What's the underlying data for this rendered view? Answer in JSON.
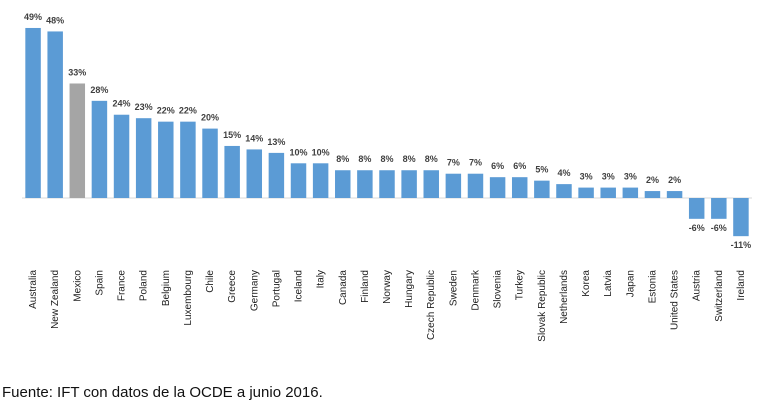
{
  "chart_data": {
    "type": "bar",
    "unit_suffix": "%",
    "categories": [
      "Australia",
      "New Zealand",
      "Mexico",
      "Spain",
      "France",
      "Poland",
      "Belgium",
      "Luxembourg",
      "Chile",
      "Greece",
      "Germany",
      "Portugal",
      "Iceland",
      "Italy",
      "Canada",
      "Finland",
      "Norway",
      "Hungary",
      "Czech Republic",
      "Sweden",
      "Denmark",
      "Slovenia",
      "Turkey",
      "Slovak Republic",
      "Netherlands",
      "Korea",
      "Latvia",
      "Japan",
      "Estonia",
      "United States",
      "Austria",
      "Switzerland",
      "Ireland"
    ],
    "values": [
      49,
      48,
      33,
      28,
      24,
      23,
      22,
      22,
      20,
      15,
      14,
      13,
      10,
      10,
      8,
      8,
      8,
      8,
      8,
      7,
      7,
      6,
      6,
      5,
      4,
      3,
      3,
      3,
      2,
      2,
      -6,
      -6,
      -11
    ],
    "data_labels": [
      "49%",
      "48%",
      "33%",
      "28%",
      "24%",
      "23%",
      "22%",
      "22%",
      "20%",
      "15%",
      "14%",
      "13%",
      "10%",
      "10%",
      "8%",
      "8%",
      "8%",
      "8%",
      "8%",
      "7%",
      "7%",
      "6%",
      "6%",
      "5%",
      "4%",
      "3%",
      "3%",
      "3%",
      "2%",
      "2%",
      "-6%",
      "-6%",
      "-11%"
    ],
    "highlight_category": "Mexico",
    "colors": {
      "bar": "#5b9bd5",
      "highlight": "#a5a5a5",
      "axis": "#d9d9d9"
    },
    "grid": false,
    "legend": "none"
  },
  "footer": {
    "source": "Fuente: IFT con datos de la OCDE a junio 2016."
  }
}
